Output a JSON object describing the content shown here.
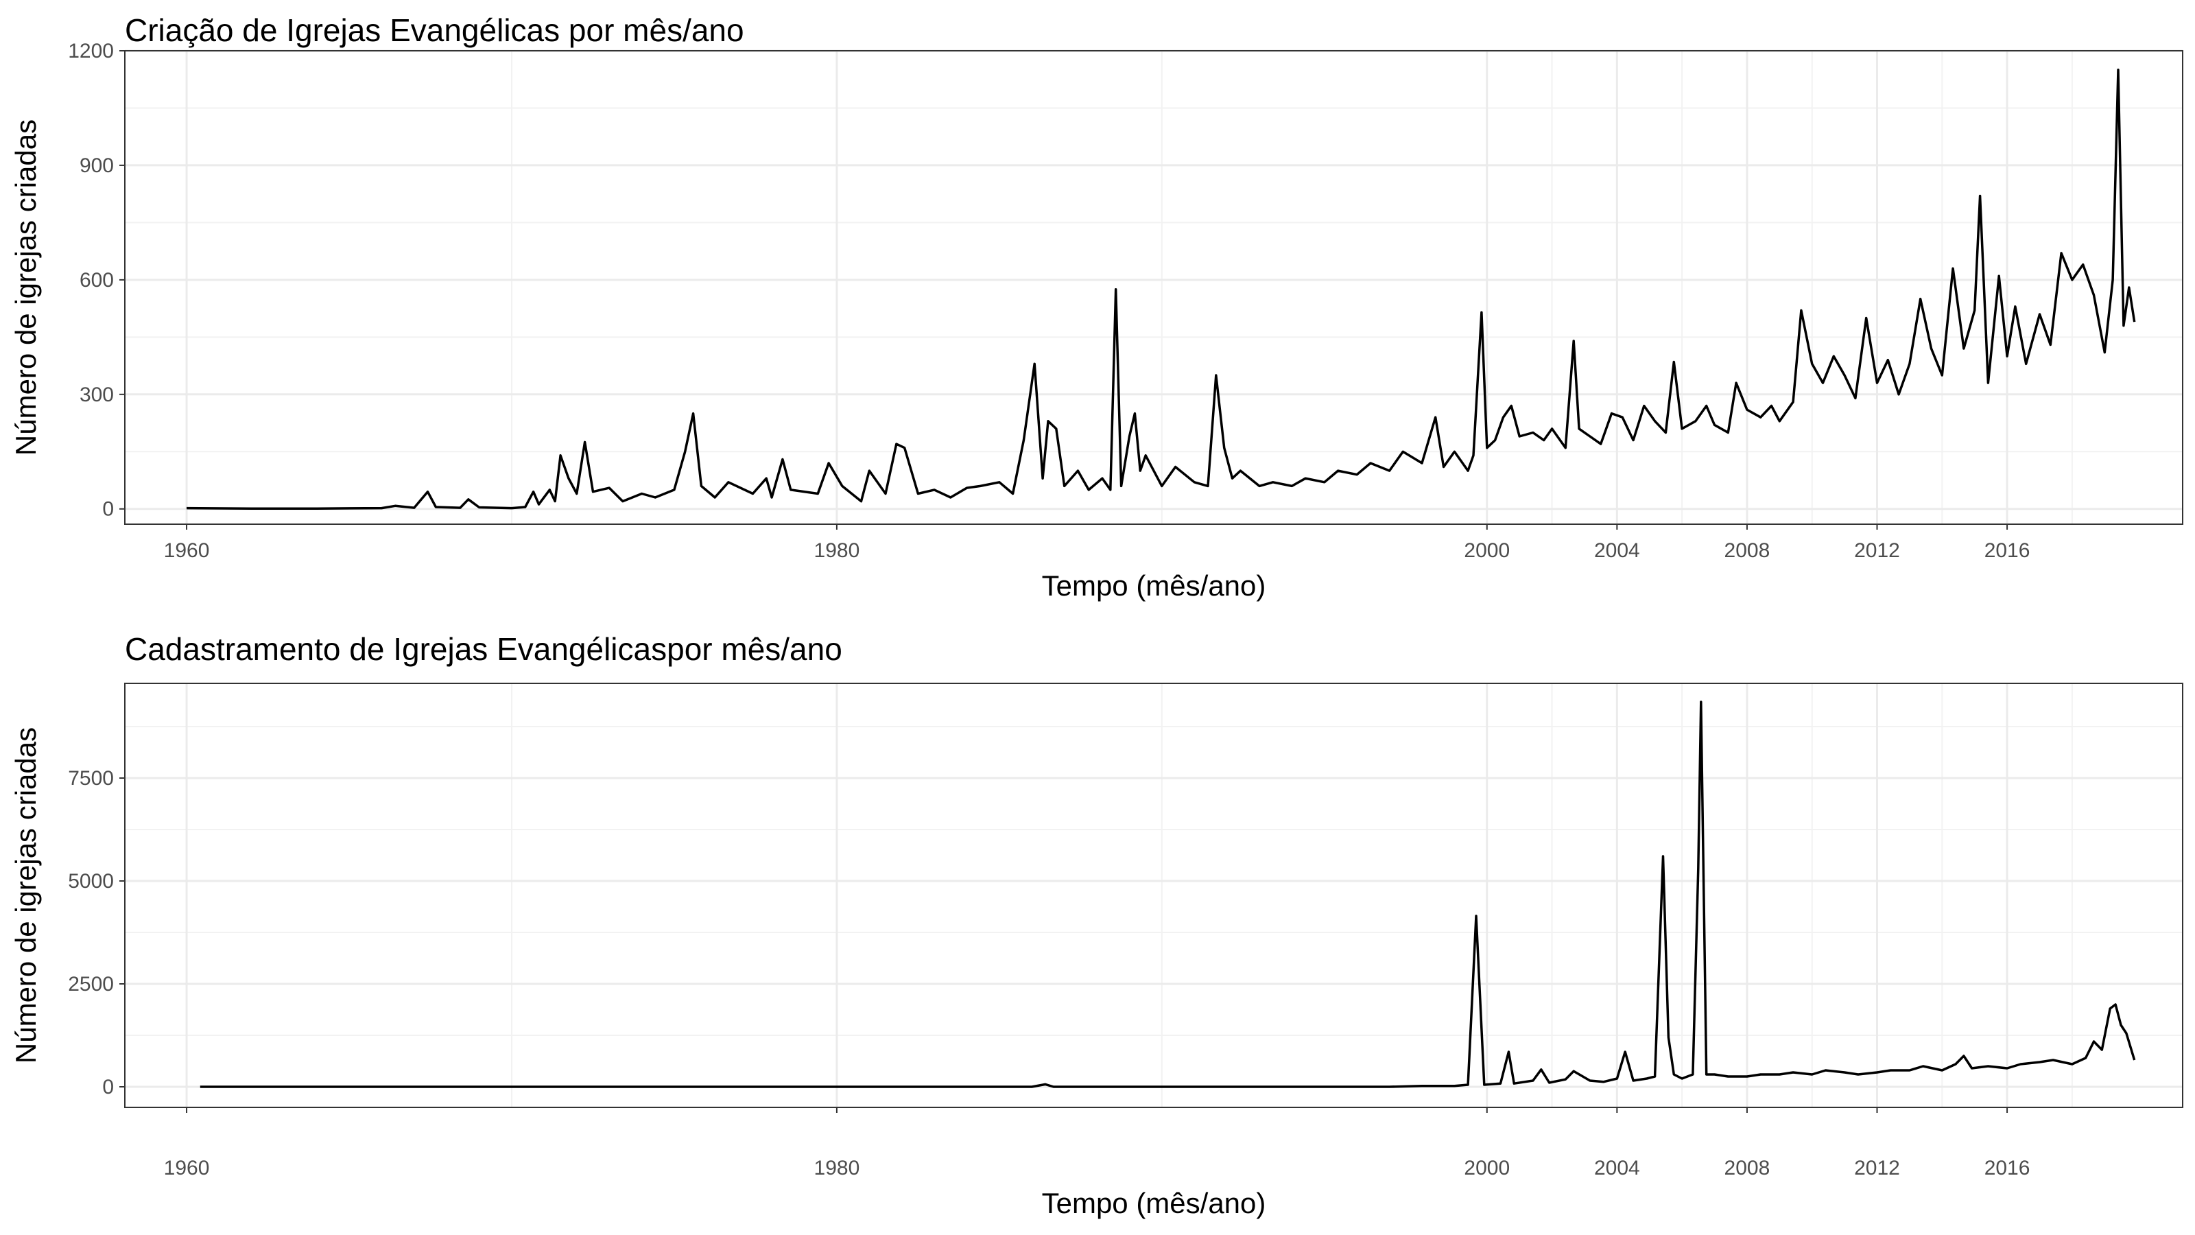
{
  "chart_data": [
    {
      "type": "line",
      "title": "Criação de Igrejas Evangélicas por mês/ano",
      "xlabel": "Tempo (mês/ano)",
      "ylabel": "Número de igrejas criadas",
      "ylim": [
        -40,
        1200
      ],
      "yticks": [
        0,
        300,
        600,
        900,
        1200
      ],
      "xticks": [
        "1960",
        "1980",
        "2000",
        "2004",
        "2008",
        "2012",
        "2016"
      ],
      "grid": true,
      "legend": "none",
      "line_color": "#000000",
      "series": [
        {
          "values": [
            [
              "1960-01",
              2
            ],
            [
              "1962-01",
              1
            ],
            [
              "1964-01",
              1
            ],
            [
              "1966-01",
              2
            ],
            [
              "1966-06",
              8
            ],
            [
              "1967-01",
              3
            ],
            [
              "1967-06",
              45
            ],
            [
              "1967-09",
              5
            ],
            [
              "1968-06",
              3
            ],
            [
              "1968-09",
              25
            ],
            [
              "1969-01",
              4
            ],
            [
              "1970-01",
              2
            ],
            [
              "1970-06",
              5
            ],
            [
              "1970-09",
              45
            ],
            [
              "1970-11",
              12
            ],
            [
              "1971-03",
              50
            ],
            [
              "1971-05",
              20
            ],
            [
              "1971-07",
              140
            ],
            [
              "1971-10",
              80
            ],
            [
              "1972-01",
              40
            ],
            [
              "1972-04",
              175
            ],
            [
              "1972-07",
              45
            ],
            [
              "1973-01",
              55
            ],
            [
              "1973-06",
              20
            ],
            [
              "1974-01",
              40
            ],
            [
              "1974-06",
              30
            ],
            [
              "1975-01",
              50
            ],
            [
              "1975-05",
              150
            ],
            [
              "1975-08",
              250
            ],
            [
              "1975-11",
              60
            ],
            [
              "1976-04",
              30
            ],
            [
              "1976-09",
              70
            ],
            [
              "1977-06",
              40
            ],
            [
              "1977-11",
              80
            ],
            [
              "1978-01",
              30
            ],
            [
              "1978-05",
              130
            ],
            [
              "1978-08",
              50
            ],
            [
              "1979-06",
              40
            ],
            [
              "1979-10",
              120
            ],
            [
              "1980-03",
              60
            ],
            [
              "1980-10",
              20
            ],
            [
              "1981-01",
              100
            ],
            [
              "1981-07",
              40
            ],
            [
              "1981-11",
              170
            ],
            [
              "1982-02",
              160
            ],
            [
              "1982-07",
              40
            ],
            [
              "1983-01",
              50
            ],
            [
              "1983-07",
              30
            ],
            [
              "1984-01",
              55
            ],
            [
              "1984-06",
              60
            ],
            [
              "1985-01",
              70
            ],
            [
              "1985-06",
              40
            ],
            [
              "1985-10",
              180
            ],
            [
              "1986-02",
              380
            ],
            [
              "1986-05",
              80
            ],
            [
              "1986-07",
              230
            ],
            [
              "1986-10",
              210
            ],
            [
              "1987-01",
              60
            ],
            [
              "1987-06",
              100
            ],
            [
              "1987-10",
              50
            ],
            [
              "1988-03",
              80
            ],
            [
              "1988-06",
              50
            ],
            [
              "1988-08",
              575
            ],
            [
              "1988-10",
              60
            ],
            [
              "1989-01",
              190
            ],
            [
              "1989-03",
              250
            ],
            [
              "1989-05",
              100
            ],
            [
              "1989-07",
              140
            ],
            [
              "1990-01",
              60
            ],
            [
              "1990-06",
              110
            ],
            [
              "1991-01",
              70
            ],
            [
              "1991-06",
              60
            ],
            [
              "1991-09",
              350
            ],
            [
              "1991-12",
              160
            ],
            [
              "1992-03",
              80
            ],
            [
              "1992-06",
              100
            ],
            [
              "1993-01",
              60
            ],
            [
              "1993-06",
              70
            ],
            [
              "1994-01",
              60
            ],
            [
              "1994-06",
              80
            ],
            [
              "1995-01",
              70
            ],
            [
              "1995-06",
              100
            ],
            [
              "1996-01",
              90
            ],
            [
              "1996-06",
              120
            ],
            [
              "1997-01",
              100
            ],
            [
              "1997-06",
              150
            ],
            [
              "1998-01",
              120
            ],
            [
              "1998-06",
              240
            ],
            [
              "1998-09",
              110
            ],
            [
              "1999-01",
              150
            ],
            [
              "1999-06",
              100
            ],
            [
              "1999-08",
              140
            ],
            [
              "1999-11",
              515
            ],
            [
              "2000-01",
              160
            ],
            [
              "2000-04",
              180
            ],
            [
              "2000-07",
              240
            ],
            [
              "2000-10",
              270
            ],
            [
              "2001-01",
              190
            ],
            [
              "2001-06",
              200
            ],
            [
              "2001-10",
              180
            ],
            [
              "2002-01",
              210
            ],
            [
              "2002-06",
              160
            ],
            [
              "2002-09",
              440
            ],
            [
              "2002-11",
              210
            ],
            [
              "2003-03",
              190
            ],
            [
              "2003-07",
              170
            ],
            [
              "2003-11",
              250
            ],
            [
              "2004-03",
              240
            ],
            [
              "2004-07",
              180
            ],
            [
              "2004-11",
              270
            ],
            [
              "2005-03",
              230
            ],
            [
              "2005-07",
              200
            ],
            [
              "2005-10",
              385
            ],
            [
              "2006-01",
              210
            ],
            [
              "2006-06",
              230
            ],
            [
              "2006-10",
              270
            ],
            [
              "2007-01",
              220
            ],
            [
              "2007-06",
              200
            ],
            [
              "2007-09",
              330
            ],
            [
              "2008-01",
              260
            ],
            [
              "2008-06",
              240
            ],
            [
              "2008-10",
              270
            ],
            [
              "2009-01",
              230
            ],
            [
              "2009-06",
              280
            ],
            [
              "2009-09",
              520
            ],
            [
              "2010-01",
              380
            ],
            [
              "2010-05",
              330
            ],
            [
              "2010-09",
              400
            ],
            [
              "2011-01",
              350
            ],
            [
              "2011-05",
              290
            ],
            [
              "2011-09",
              500
            ],
            [
              "2012-01",
              330
            ],
            [
              "2012-05",
              390
            ],
            [
              "2012-09",
              300
            ],
            [
              "2013-01",
              380
            ],
            [
              "2013-05",
              550
            ],
            [
              "2013-09",
              420
            ],
            [
              "2014-01",
              350
            ],
            [
              "2014-05",
              630
            ],
            [
              "2014-09",
              420
            ],
            [
              "2015-01",
              520
            ],
            [
              "2015-03",
              820
            ],
            [
              "2015-06",
              330
            ],
            [
              "2015-10",
              610
            ],
            [
              "2016-01",
              400
            ],
            [
              "2016-04",
              530
            ],
            [
              "2016-08",
              380
            ],
            [
              "2017-01",
              510
            ],
            [
              "2017-05",
              430
            ],
            [
              "2017-09",
              670
            ],
            [
              "2018-01",
              600
            ],
            [
              "2018-05",
              640
            ],
            [
              "2018-09",
              560
            ],
            [
              "2019-01",
              410
            ],
            [
              "2019-04",
              600
            ],
            [
              "2019-06",
              1150
            ],
            [
              "2019-08",
              480
            ],
            [
              "2019-10",
              580
            ],
            [
              "2019-12",
              490
            ]
          ]
        }
      ]
    },
    {
      "type": "line",
      "title": "Cadastramento de Igrejas Evangélicaspor mês/ano",
      "xlabel": "Tempo (mês/ano)",
      "ylabel": "Número de igrejas criadas",
      "ylim": [
        -500,
        9800
      ],
      "yticks": [
        0,
        2500,
        5000,
        7500
      ],
      "xticks": [
        "1960",
        "1980",
        "2000",
        "2004",
        "2008",
        "2012",
        "2016"
      ],
      "grid": true,
      "legend": "none",
      "line_color": "#000000",
      "series": [
        {
          "values": [
            [
              "1960-06",
              0
            ],
            [
              "1986-01",
              0
            ],
            [
              "1986-06",
              60
            ],
            [
              "1986-09",
              0
            ],
            [
              "1997-01",
              0
            ],
            [
              "1998-01",
              20
            ],
            [
              "1999-01",
              20
            ],
            [
              "1999-06",
              50
            ],
            [
              "1999-09",
              4150
            ],
            [
              "1999-12",
              50
            ],
            [
              "2000-06",
              80
            ],
            [
              "2000-09",
              850
            ],
            [
              "2000-11",
              80
            ],
            [
              "2001-06",
              150
            ],
            [
              "2001-09",
              420
            ],
            [
              "2001-12",
              100
            ],
            [
              "2002-06",
              180
            ],
            [
              "2002-09",
              380
            ],
            [
              "2003-03",
              150
            ],
            [
              "2003-08",
              120
            ],
            [
              "2004-01",
              200
            ],
            [
              "2004-04",
              850
            ],
            [
              "2004-07",
              150
            ],
            [
              "2004-12",
              200
            ],
            [
              "2005-03",
              250
            ],
            [
              "2005-06",
              5600
            ],
            [
              "2005-08",
              1200
            ],
            [
              "2005-10",
              300
            ],
            [
              "2006-01",
              200
            ],
            [
              "2006-05",
              300
            ],
            [
              "2006-07",
              5300
            ],
            [
              "2006-08",
              9350
            ],
            [
              "2006-10",
              300
            ],
            [
              "2007-01",
              300
            ],
            [
              "2007-06",
              250
            ],
            [
              "2008-01",
              250
            ],
            [
              "2008-06",
              300
            ],
            [
              "2009-01",
              300
            ],
            [
              "2009-06",
              350
            ],
            [
              "2010-01",
              300
            ],
            [
              "2010-06",
              400
            ],
            [
              "2011-01",
              350
            ],
            [
              "2011-06",
              300
            ],
            [
              "2012-01",
              350
            ],
            [
              "2012-06",
              400
            ],
            [
              "2013-01",
              400
            ],
            [
              "2013-06",
              500
            ],
            [
              "2014-01",
              400
            ],
            [
              "2014-06",
              550
            ],
            [
              "2014-09",
              750
            ],
            [
              "2014-12",
              450
            ],
            [
              "2015-06",
              500
            ],
            [
              "2016-01",
              450
            ],
            [
              "2016-06",
              550
            ],
            [
              "2017-01",
              600
            ],
            [
              "2017-06",
              650
            ],
            [
              "2018-01",
              550
            ],
            [
              "2018-06",
              700
            ],
            [
              "2018-09",
              1100
            ],
            [
              "2018-12",
              900
            ],
            [
              "2019-03",
              1900
            ],
            [
              "2019-05",
              2000
            ],
            [
              "2019-07",
              1500
            ],
            [
              "2019-09",
              1300
            ],
            [
              "2019-12",
              650
            ]
          ]
        }
      ]
    }
  ]
}
